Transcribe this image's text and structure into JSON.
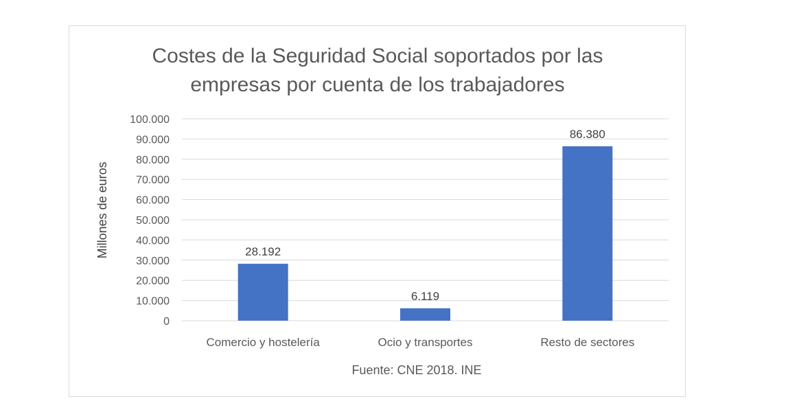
{
  "chart_data": {
    "type": "bar",
    "title_line1": "Costes de la Seguridad Social soportados por las",
    "title_line2": "empresas por cuenta de los trabajadores",
    "categories": [
      "Comercio y hostelería",
      "Ocio y transportes",
      "Resto de sectores"
    ],
    "values": [
      28192,
      6119,
      86380
    ],
    "data_labels": [
      "28.192",
      "6.119",
      "86.380"
    ],
    "ylabel": "Millones de euros",
    "xlabel": "Fuente: CNE 2018. INE",
    "ylim": [
      0,
      100000
    ],
    "y_ticks": [
      0,
      10000,
      20000,
      30000,
      40000,
      50000,
      60000,
      70000,
      80000,
      90000,
      100000
    ],
    "y_tick_labels": [
      "0",
      "10.000",
      "20.000",
      "30.000",
      "40.000",
      "50.000",
      "60.000",
      "70.000",
      "80.000",
      "90.000",
      "100.000"
    ],
    "grid": true,
    "bar_color": "#4472C4"
  }
}
